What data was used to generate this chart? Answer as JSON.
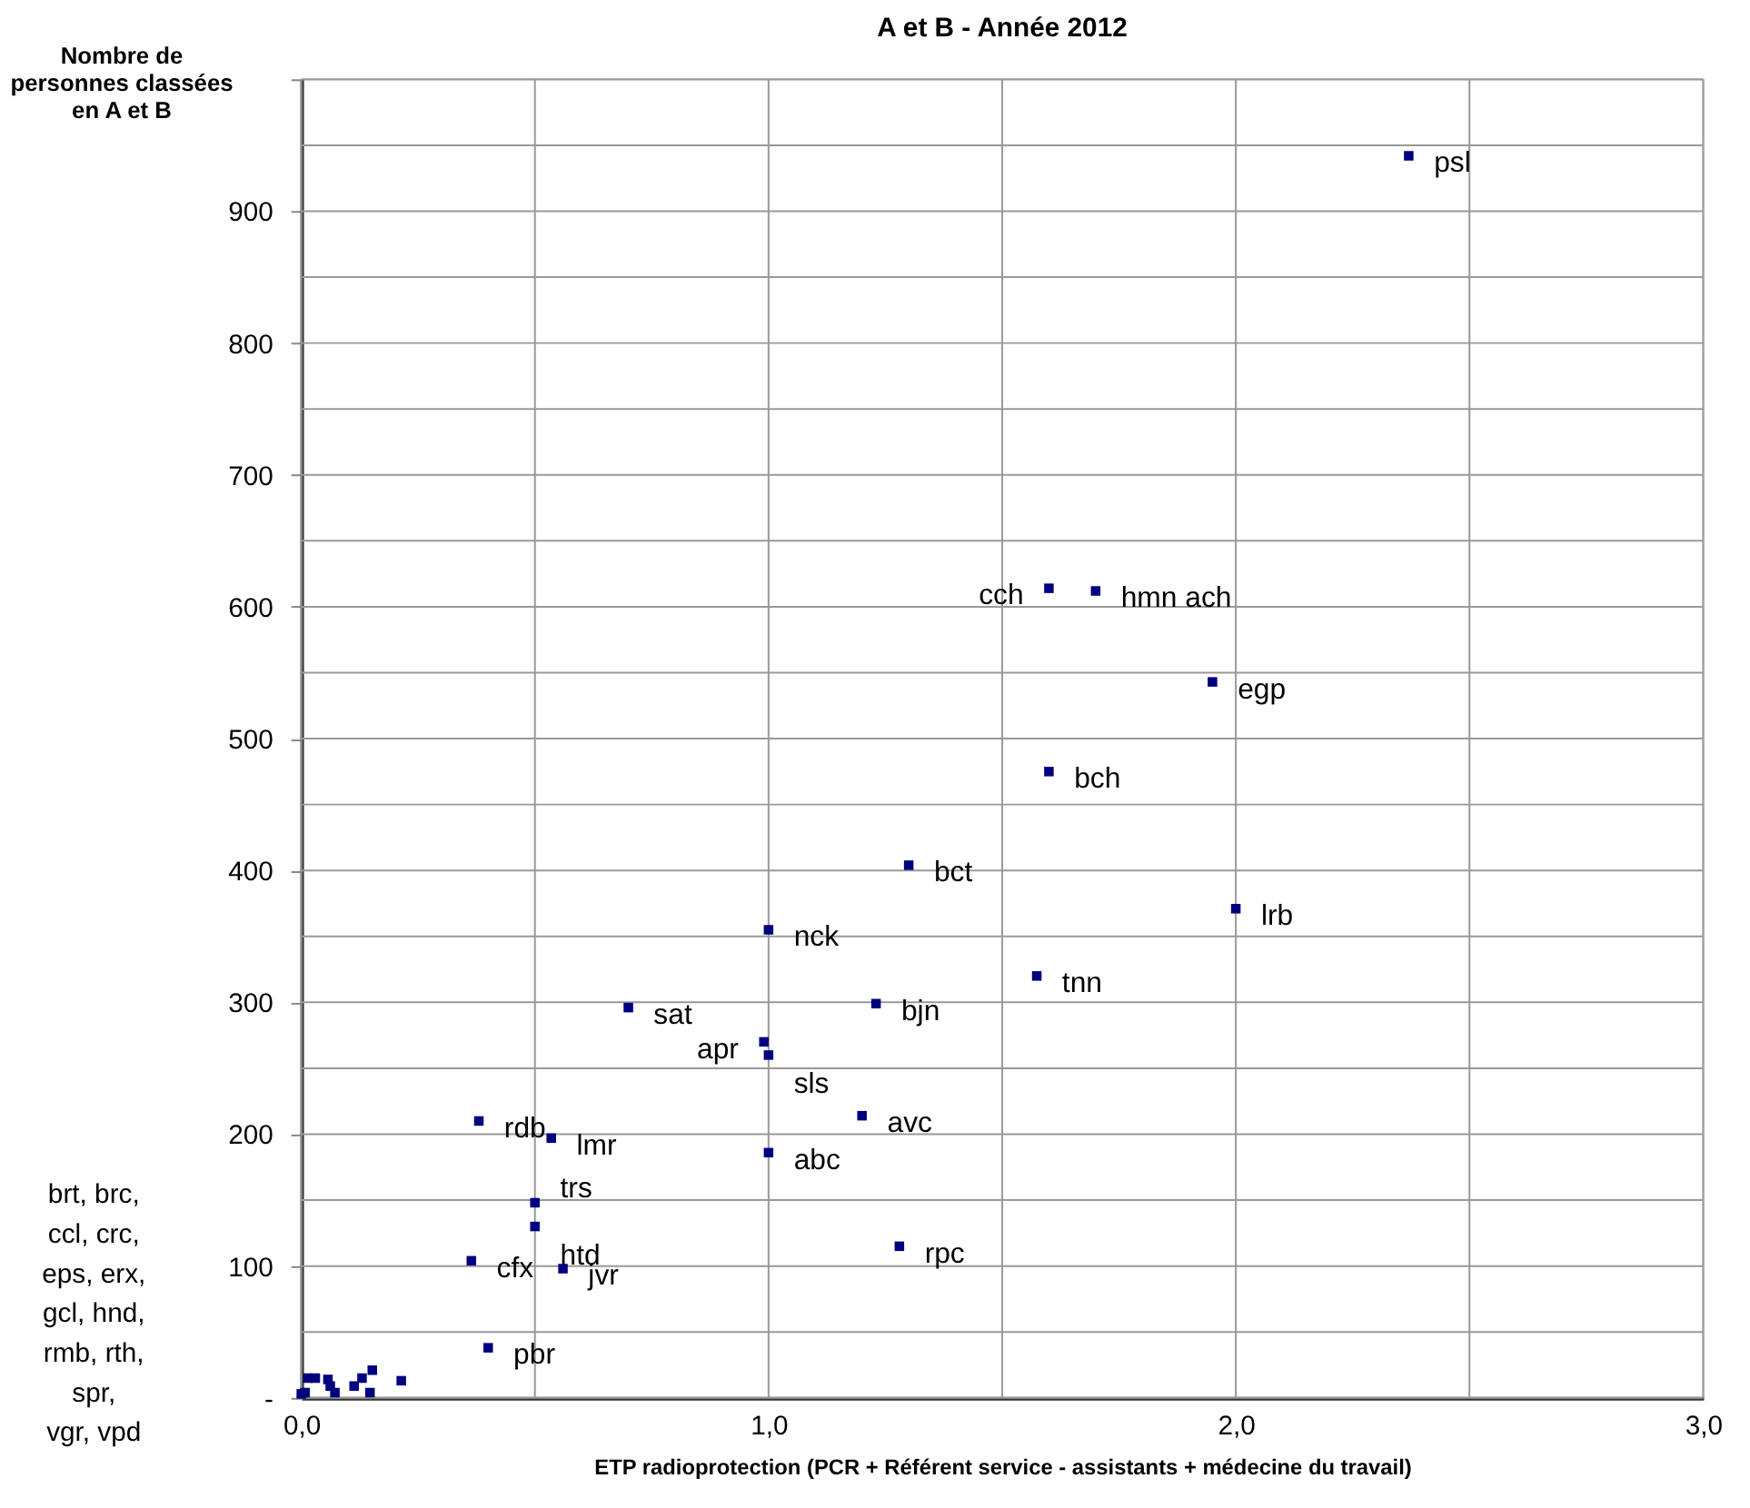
{
  "chart_data": {
    "type": "scatter",
    "title": "A et B - Année 2012",
    "xlabel": "ETP radioprotection (PCR + Référent service - assistants + médecine du travail)",
    "ylabel": "Nombre de\npersonnes classées\nen A et B",
    "series": [
      {
        "color": "#000080",
        "x": [
          2.37,
          1.6,
          1.7,
          1.95,
          1.6,
          1.3,
          2.0,
          1.0,
          1.574,
          1.23,
          0.99,
          1.0,
          1.2,
          1.0,
          0.7,
          0.38,
          0.535,
          0.5,
          0.5,
          0.364,
          0.56,
          0.4,
          1.28,
          0.0,
          0.008,
          0.014,
          0.03,
          0.057,
          0.062,
          0.072,
          0.113,
          0.13,
          0.152,
          0.147,
          0.214
        ],
        "values": [
          942,
          614,
          612,
          543,
          475,
          404,
          371,
          355,
          320,
          299,
          270,
          260,
          214,
          186,
          296,
          210,
          197,
          148,
          130,
          104,
          98,
          38,
          115,
          3,
          4,
          15,
          15,
          14,
          9,
          4,
          9,
          15,
          21,
          4,
          13
        ]
      }
    ],
    "annotations": [
      {
        "text": "psl",
        "x": 2.37,
        "y": 942
      },
      {
        "text": "cch",
        "x": 1.6,
        "y": 614
      },
      {
        "text": "hmn ach",
        "x": 1.7,
        "y": 612
      },
      {
        "text": "egp",
        "x": 1.95,
        "y": 543
      },
      {
        "text": "bch",
        "x": 1.6,
        "y": 475
      },
      {
        "text": "bct",
        "x": 1.3,
        "y": 404
      },
      {
        "text": "lrb",
        "x": 2.0,
        "y": 371
      },
      {
        "text": "nck",
        "x": 1.0,
        "y": 355
      },
      {
        "text": "tnn",
        "x": 1.574,
        "y": 320
      },
      {
        "text": "bjn",
        "x": 1.23,
        "y": 299
      },
      {
        "text": "apr",
        "x": 0.99,
        "y": 270
      },
      {
        "text": "sls",
        "x": 1.0,
        "y": 260
      },
      {
        "text": "avc",
        "x": 1.2,
        "y": 214
      },
      {
        "text": "abc",
        "x": 1.0,
        "y": 186
      },
      {
        "text": "sat",
        "x": 0.7,
        "y": 296
      },
      {
        "text": "rdb",
        "x": 0.38,
        "y": 210
      },
      {
        "text": "lmr",
        "x": 0.535,
        "y": 197
      },
      {
        "text": "trs",
        "x": 0.5,
        "y": 148
      },
      {
        "text": "htd",
        "x": 0.5,
        "y": 130
      },
      {
        "text": "cfx",
        "x": 0.364,
        "y": 104
      },
      {
        "text": "jvr",
        "x": 0.56,
        "y": 98
      },
      {
        "text": "pbr",
        "x": 0.4,
        "y": 38
      },
      {
        "text": "rpc",
        "x": 1.28,
        "y": 115
      },
      "brt, brc,\nccl, crc,\neps, erx,\ngcl, hnd,\nrmb, rth,\nspr,\nvgr, vpd"
    ],
    "xlim": [
      0,
      3.0
    ],
    "xticks": [
      {
        "value": 0,
        "label": "0,0"
      },
      {
        "value": 0.5,
        "label": null
      },
      {
        "value": 1.0,
        "label": "1,0"
      },
      {
        "value": 1.5,
        "label": null
      },
      {
        "value": 2.0,
        "label": "2,0"
      },
      {
        "value": 2.5,
        "label": null
      },
      {
        "value": 3.0,
        "label": "3,0"
      }
    ],
    "ylim": [
      0,
      1000
    ],
    "yticks": [
      {
        "value": 0,
        "label": "-"
      },
      {
        "value": 50,
        "label": null
      },
      100,
      {
        "value": 150,
        "label": null
      },
      200,
      {
        "value": 250,
        "label": null
      },
      300,
      {
        "value": 350,
        "label": null
      },
      400,
      {
        "value": 450,
        "label": null
      },
      500,
      {
        "value": 550,
        "label": null
      },
      600,
      {
        "value": 650,
        "label": null
      },
      700,
      {
        "value": 750,
        "label": null
      },
      800,
      {
        "value": 850,
        "label": null
      },
      900,
      {
        "value": 950,
        "label": null
      },
      {
        "value": 1000,
        "label": null
      }
    ],
    "grid": true,
    "marker": "square"
  }
}
